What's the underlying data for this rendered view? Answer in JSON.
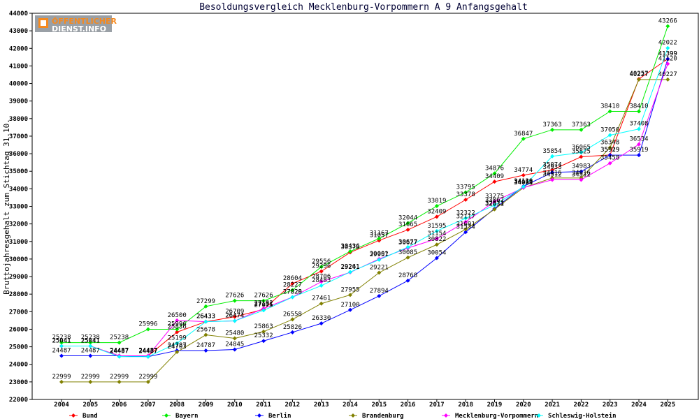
{
  "logo": {
    "line1": "ÖFFENTLICHER",
    "line2": "DIENST.INFO"
  },
  "chart_data": {
    "type": "line",
    "title": "Besoldungsvergleich Mecklenburg-Vorpommern A 9 Anfangsgehalt",
    "xlabel": "",
    "ylabel": "Bruttojahresgehalt zum Stichtag 31.10.",
    "ylim": [
      22000,
      44000
    ],
    "ystep": 1000,
    "grid": false,
    "legend_position": "bottom",
    "x": [
      2004,
      2005,
      2006,
      2007,
      2008,
      2009,
      2010,
      2011,
      2012,
      2013,
      2014,
      2015,
      2016,
      2017,
      2018,
      2019,
      2020,
      2021,
      2022,
      2023,
      2024,
      2025
    ],
    "series": [
      {
        "name": "Bund",
        "color": "#ff0000",
        "values": [
          25041,
          25041,
          24487,
          24487,
          25836,
          26433,
          26709,
          27131,
          28604,
          29296,
          30378,
          31057,
          31665,
          32409,
          33378,
          34409,
          34774,
          35074,
          35825,
          35929,
          40257,
          41399
        ]
      },
      {
        "name": "Bayern",
        "color": "#00ee00",
        "values": [
          25238,
          25238,
          25238,
          25996,
          25996,
          27299,
          27626,
          27626,
          28227,
          29556,
          30436,
          31167,
          32044,
          33019,
          33795,
          34876,
          36847,
          37363,
          37363,
          38410,
          38410,
          43266
        ]
      },
      {
        "name": "Berlin",
        "color": "#0000ff",
        "values": [
          24487,
          24487,
          24487,
          24437,
          24787,
          24787,
          24845,
          25332,
          25826,
          26330,
          27100,
          27894,
          28768,
          30054,
          31534,
          32873,
          34139,
          34933,
          34983,
          35919,
          35919,
          41399
        ]
      },
      {
        "name": "Brandenburg",
        "color": "#808000",
        "values": [
          22999,
          22999,
          22999,
          22999,
          24703,
          25678,
          25480,
          25863,
          26558,
          27461,
          27955,
          29221,
          30085,
          30822,
          31691,
          32831,
          34059,
          34616,
          34616,
          36348,
          40227,
          40227
        ]
      },
      {
        "name": "Mecklenburg-Vorpommern",
        "color": "#ff00ff",
        "values": [
          25041,
          25041,
          24487,
          24487,
          26500,
          26433,
          26474,
          27182,
          27829,
          28706,
          29241,
          30001,
          30627,
          31154,
          32117,
          33275,
          34064,
          34512,
          34512,
          35458,
          36534,
          41120
        ]
      },
      {
        "name": "Schleswig-Holstein",
        "color": "#00ffff",
        "values": [
          25041,
          25041,
          24437,
          24437,
          25199,
          26433,
          26474,
          27075,
          27826,
          28483,
          29261,
          29957,
          30677,
          31595,
          32322,
          33067,
          34116,
          35854,
          36065,
          37056,
          37408,
          42022
        ]
      }
    ],
    "data_labels": [
      [
        "25041",
        "25041",
        "24487",
        "24487",
        "25836",
        "26433",
        "26709",
        "27131",
        "28604",
        "29296",
        "30378",
        "31057",
        "31665",
        "32409",
        "33378",
        "34409",
        "34774",
        "35074",
        "35825",
        "35929",
        "40257",
        "41399"
      ],
      [
        "25238",
        "25238",
        "25238",
        "25996",
        "25996",
        "27299",
        "27626",
        "27626",
        "28227",
        "29556",
        "30436",
        "31167",
        "32044",
        "33019",
        "33795",
        "34876",
        "36847",
        "37363",
        "37363",
        "38410",
        "38410",
        "43266"
      ],
      [
        "24487",
        "24487",
        "24487",
        "24437",
        "24787",
        "24787",
        "24845",
        "25332",
        "25826",
        "26330",
        "27100",
        "27894",
        "28768",
        "30054",
        "31534",
        "32873",
        "34139",
        "34933",
        "34983",
        "35919",
        "35919",
        "41399"
      ],
      [
        "22999",
        "22999",
        "22999",
        "22999",
        "24703",
        "25678",
        "25480",
        "25863",
        "26558",
        "27461",
        "27955",
        "29221",
        "30085",
        "30822",
        "31691",
        "32831",
        "34059",
        "34616",
        "34616",
        "36348",
        "40227",
        "40227"
      ],
      [
        "25041",
        "25041",
        "24487",
        "24487",
        "26500",
        "26433",
        "26474",
        "27182",
        "27829",
        "28706",
        "29241",
        "30001",
        "30627",
        "31154",
        "32117",
        "33275",
        "34064",
        "34512",
        "34512",
        "35458",
        "36534",
        "41120"
      ],
      [
        "25041",
        "25041",
        "24437",
        "24437",
        "25199",
        "26433",
        "26474",
        "27075",
        "27826",
        "28483",
        "29261",
        "29957",
        "30677",
        "31595",
        "32322",
        "33067",
        "34116",
        "35854",
        "36065",
        "37056",
        "37408",
        "42022"
      ]
    ]
  }
}
